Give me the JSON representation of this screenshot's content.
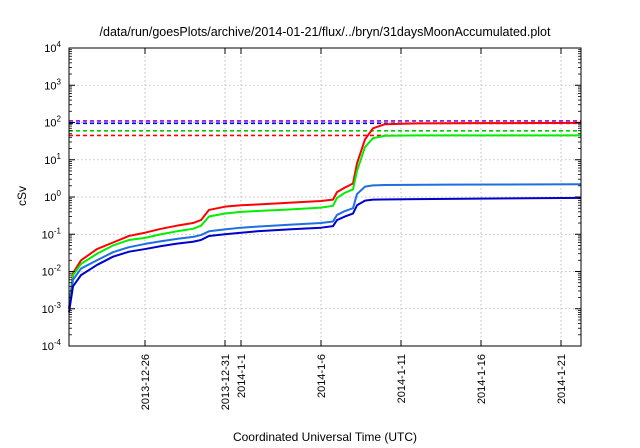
{
  "chart_data": {
    "type": "line",
    "title": "/data/run/goesPlots/archive/2014-01-21/flux/../bryn/31daysMoonAccumulated.plot",
    "xlabel": "Coordinated Universal Time (UTC)",
    "ylabel": "cSv",
    "yscale": "log",
    "ylim": [
      0.0001,
      10000
    ],
    "xlim": [
      "2013-12-21T06:00",
      "2014-01-22T06:00"
    ],
    "grid": true,
    "y_ticks": [
      {
        "value": 0.0001,
        "base": "10",
        "exp": "-4"
      },
      {
        "value": 0.001,
        "base": "10",
        "exp": "-3"
      },
      {
        "value": 0.01,
        "base": "10",
        "exp": "-2"
      },
      {
        "value": 0.1,
        "base": "10",
        "exp": "-1"
      },
      {
        "value": 1,
        "label": "10",
        "exp": "0"
      },
      {
        "value": 10,
        "base": "10",
        "exp": "1"
      },
      {
        "value": 100,
        "base": "10",
        "exp": "2"
      },
      {
        "value": 1000,
        "base": "10",
        "exp": "3"
      },
      {
        "value": 10000,
        "base": "10",
        "exp": "4"
      }
    ],
    "x_ticks": [
      {
        "value": "2013-12-26",
        "label": "2013-12-26"
      },
      {
        "value": "2013-12-31",
        "label": "2013-12-31"
      },
      {
        "value": "2014-01-01",
        "label": "2014-1-1"
      },
      {
        "value": "2014-01-06",
        "label": "2014-1-6"
      },
      {
        "value": "2014-01-11",
        "label": "2014-1-11"
      },
      {
        "value": "2014-01-16",
        "label": "2014-1-16"
      },
      {
        "value": "2014-01-21",
        "label": "2014-1-21"
      }
    ],
    "reference_lines": [
      {
        "value": 110,
        "color": "#9400d3",
        "style": "dashed"
      },
      {
        "value": 95,
        "color": "#0000ff",
        "style": "dashed"
      },
      {
        "value": 60,
        "color": "#00cc00",
        "style": "dashed"
      },
      {
        "value": 45,
        "color": "#ff0000",
        "style": "dashed"
      }
    ],
    "series": [
      {
        "color": "#ff0000",
        "points": [
          [
            "2013-12-21T06:00",
            0.001
          ],
          [
            "2013-12-21T12:00",
            0.009
          ],
          [
            "2013-12-22T00:00",
            0.02
          ],
          [
            "2013-12-23T00:00",
            0.04
          ],
          [
            "2013-12-24T00:00",
            0.06
          ],
          [
            "2013-12-25T00:00",
            0.09
          ],
          [
            "2013-12-26T00:00",
            0.11
          ],
          [
            "2013-12-27T00:00",
            0.14
          ],
          [
            "2013-12-28T00:00",
            0.17
          ],
          [
            "2013-12-29T00:00",
            0.2
          ],
          [
            "2013-12-29T12:00",
            0.24
          ],
          [
            "2013-12-30T00:00",
            0.45
          ],
          [
            "2013-12-31T00:00",
            0.55
          ],
          [
            "2014-01-01T00:00",
            0.6
          ],
          [
            "2014-01-02T00:00",
            0.63
          ],
          [
            "2014-01-04T00:00",
            0.7
          ],
          [
            "2014-01-06T00:00",
            0.78
          ],
          [
            "2014-01-06T18:00",
            0.85
          ],
          [
            "2014-01-07T00:00",
            1.35
          ],
          [
            "2014-01-07T12:00",
            1.8
          ],
          [
            "2014-01-08T00:00",
            2.3
          ],
          [
            "2014-01-08T06:00",
            8
          ],
          [
            "2014-01-08T18:00",
            35
          ],
          [
            "2014-01-09T06:00",
            70
          ],
          [
            "2014-01-10T00:00",
            90
          ],
          [
            "2014-01-12T00:00",
            95
          ],
          [
            "2014-01-16T00:00",
            96
          ],
          [
            "2014-01-22T06:00",
            98
          ]
        ]
      },
      {
        "color": "#00ee00",
        "points": [
          [
            "2013-12-21T06:00",
            0.001
          ],
          [
            "2013-12-21T12:00",
            0.008
          ],
          [
            "2013-12-22T00:00",
            0.016
          ],
          [
            "2013-12-23T00:00",
            0.03
          ],
          [
            "2013-12-24T00:00",
            0.05
          ],
          [
            "2013-12-25T00:00",
            0.07
          ],
          [
            "2013-12-26T00:00",
            0.08
          ],
          [
            "2013-12-27T00:00",
            0.1
          ],
          [
            "2013-12-28T00:00",
            0.12
          ],
          [
            "2013-12-29T00:00",
            0.14
          ],
          [
            "2013-12-29T12:00",
            0.17
          ],
          [
            "2013-12-30T00:00",
            0.3
          ],
          [
            "2013-12-31T00:00",
            0.36
          ],
          [
            "2014-01-01T00:00",
            0.4
          ],
          [
            "2014-01-02T00:00",
            0.42
          ],
          [
            "2014-01-04T00:00",
            0.46
          ],
          [
            "2014-01-06T00:00",
            0.52
          ],
          [
            "2014-01-06T18:00",
            0.58
          ],
          [
            "2014-01-07T00:00",
            0.95
          ],
          [
            "2014-01-07T12:00",
            1.3
          ],
          [
            "2014-01-08T00:00",
            1.6
          ],
          [
            "2014-01-08T06:00",
            5
          ],
          [
            "2014-01-08T18:00",
            22
          ],
          [
            "2014-01-09T06:00",
            38
          ],
          [
            "2014-01-10T00:00",
            44
          ],
          [
            "2014-01-12T00:00",
            45
          ],
          [
            "2014-01-22T06:00",
            45
          ]
        ]
      },
      {
        "color": "#1e6fe0",
        "points": [
          [
            "2013-12-21T06:00",
            0.001
          ],
          [
            "2013-12-21T12:00",
            0.006
          ],
          [
            "2013-12-22T00:00",
            0.012
          ],
          [
            "2013-12-23T00:00",
            0.02
          ],
          [
            "2013-12-24T00:00",
            0.033
          ],
          [
            "2013-12-25T00:00",
            0.045
          ],
          [
            "2013-12-26T00:00",
            0.055
          ],
          [
            "2013-12-27T00:00",
            0.065
          ],
          [
            "2013-12-28T00:00",
            0.075
          ],
          [
            "2013-12-29T00:00",
            0.085
          ],
          [
            "2013-12-29T12:00",
            0.095
          ],
          [
            "2013-12-30T00:00",
            0.12
          ],
          [
            "2013-12-31T00:00",
            0.135
          ],
          [
            "2014-01-01T00:00",
            0.15
          ],
          [
            "2014-01-02T00:00",
            0.16
          ],
          [
            "2014-01-04T00:00",
            0.18
          ],
          [
            "2014-01-06T00:00",
            0.2
          ],
          [
            "2014-01-06T18:00",
            0.22
          ],
          [
            "2014-01-07T00:00",
            0.33
          ],
          [
            "2014-01-07T12:00",
            0.42
          ],
          [
            "2014-01-08T00:00",
            0.5
          ],
          [
            "2014-01-08T06:00",
            1.2
          ],
          [
            "2014-01-08T18:00",
            1.9
          ],
          [
            "2014-01-09T06:00",
            2.05
          ],
          [
            "2014-01-10T00:00",
            2.1
          ],
          [
            "2014-01-14T00:00",
            2.15
          ],
          [
            "2014-01-22T06:00",
            2.2
          ]
        ]
      },
      {
        "color": "#0000cc",
        "points": [
          [
            "2013-12-21T06:00",
            0.0008
          ],
          [
            "2013-12-21T12:00",
            0.004
          ],
          [
            "2013-12-22T00:00",
            0.008
          ],
          [
            "2013-12-23T00:00",
            0.015
          ],
          [
            "2013-12-24T00:00",
            0.025
          ],
          [
            "2013-12-25T00:00",
            0.034
          ],
          [
            "2013-12-26T00:00",
            0.04
          ],
          [
            "2013-12-27T00:00",
            0.048
          ],
          [
            "2013-12-28T00:00",
            0.056
          ],
          [
            "2013-12-29T00:00",
            0.063
          ],
          [
            "2013-12-29T12:00",
            0.07
          ],
          [
            "2013-12-30T00:00",
            0.09
          ],
          [
            "2013-12-31T00:00",
            0.1
          ],
          [
            "2014-01-01T00:00",
            0.11
          ],
          [
            "2014-01-02T00:00",
            0.12
          ],
          [
            "2014-01-04T00:00",
            0.135
          ],
          [
            "2014-01-06T00:00",
            0.15
          ],
          [
            "2014-01-06T18:00",
            0.165
          ],
          [
            "2014-01-07T00:00",
            0.24
          ],
          [
            "2014-01-07T12:00",
            0.3
          ],
          [
            "2014-01-08T00:00",
            0.36
          ],
          [
            "2014-01-08T06:00",
            0.6
          ],
          [
            "2014-01-08T18:00",
            0.8
          ],
          [
            "2014-01-09T06:00",
            0.85
          ],
          [
            "2014-01-12T00:00",
            0.88
          ],
          [
            "2014-01-22T06:00",
            0.95
          ]
        ]
      }
    ]
  }
}
